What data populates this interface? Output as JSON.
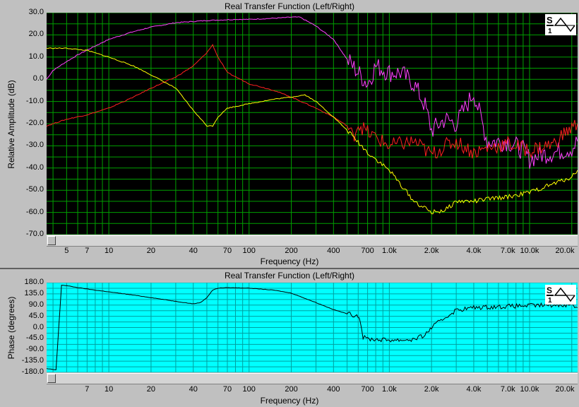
{
  "chart_data": [
    {
      "type": "line",
      "title": "Real Transfer Function (Left/Right)",
      "xlabel": "Frequency (Hz)",
      "ylabel": "Relative Amplitude (dB)",
      "xscale": "log",
      "xlim": [
        3.6,
        22000
      ],
      "ylim": [
        -70,
        30
      ],
      "yticks": [
        "30.0",
        "20.0",
        "10.0",
        "0.0",
        "-10.0",
        "-20.0",
        "-30.0",
        "-40.0",
        "-50.0",
        "-60.0",
        "-70.0"
      ],
      "xticks": [
        {
          "v": 5,
          "label": "5"
        },
        {
          "v": 7,
          "label": "7"
        },
        {
          "v": 10,
          "label": "10"
        },
        {
          "v": 20,
          "label": "20"
        },
        {
          "v": 40,
          "label": "40"
        },
        {
          "v": 70,
          "label": "70"
        },
        {
          "v": 100,
          "label": "100"
        },
        {
          "v": 200,
          "label": "200"
        },
        {
          "v": 400,
          "label": "400"
        },
        {
          "v": 700,
          "label": "700"
        },
        {
          "v": 1000,
          "label": "1.0k"
        },
        {
          "v": 2000,
          "label": "2.0k"
        },
        {
          "v": 4000,
          "label": "4.0k"
        },
        {
          "v": 7000,
          "label": "7.0k"
        },
        {
          "v": 10000,
          "label": "10.0k"
        },
        {
          "v": 20000,
          "label": "20.0k"
        }
      ],
      "background": "#000000",
      "grid": true,
      "grid_color": "#00a000",
      "series": [
        {
          "color": "#ff40ff",
          "x": [
            3.6,
            4,
            5,
            6,
            8,
            10,
            15,
            20,
            30,
            50,
            80,
            100,
            150,
            200,
            230,
            300,
            400,
            500,
            600,
            700,
            800,
            1000,
            1200,
            1500,
            1800,
            2000,
            2500,
            3000,
            4000,
            5000,
            6000,
            7000,
            9000,
            10000,
            12000,
            15000,
            20000,
            22000
          ],
          "y": [
            0,
            4,
            8,
            11,
            15,
            18,
            21.5,
            23.5,
            25.5,
            26.5,
            27,
            27,
            27.5,
            28,
            28,
            24,
            18,
            9,
            3,
            -2,
            6,
            3,
            3,
            -2,
            -12,
            -23,
            -18,
            -20,
            -6,
            -28,
            -28,
            -28,
            -32,
            -36,
            -34,
            -33,
            -31,
            -28
          ]
        },
        {
          "color": "#ff2020",
          "x": [
            3.6,
            5,
            7,
            10,
            15,
            20,
            30,
            40,
            50,
            55,
            60,
            70,
            100,
            150,
            200,
            300,
            400,
            500,
            550,
            600,
            700,
            1000,
            1500,
            2000,
            2500,
            3000,
            4000,
            5000,
            7000,
            10000,
            15000,
            18000,
            20000,
            22000
          ],
          "y": [
            -21,
            -18,
            -16,
            -13,
            -8,
            -4,
            1,
            6,
            12,
            15.5,
            10,
            3,
            -2,
            -5,
            -8,
            -13,
            -17,
            -21,
            -26,
            -20,
            -24,
            -30,
            -28,
            -34,
            -30,
            -28,
            -33,
            -31,
            -29,
            -32,
            -29,
            -24,
            -22,
            -20
          ]
        },
        {
          "color": "#ffff00",
          "x": [
            3.6,
            5,
            7,
            10,
            15,
            20,
            30,
            40,
            50,
            55,
            60,
            70,
            100,
            150,
            200,
            250,
            300,
            400,
            500,
            700,
            1000,
            1500,
            2000,
            2500,
            3000,
            4000,
            5000,
            7000,
            10000,
            15000,
            20000,
            22000
          ],
          "y": [
            14,
            14,
            13,
            10,
            6,
            2,
            -4,
            -14,
            -21,
            -21,
            -17,
            -13,
            -11,
            -9,
            -8,
            -7,
            -10,
            -17,
            -23,
            -33,
            -41,
            -55,
            -60,
            -59,
            -55,
            -55,
            -54,
            -53,
            -51,
            -47,
            -44,
            -41
          ]
        }
      ]
    },
    {
      "type": "line",
      "title": "Real Transfer Function (Left/Right)",
      "xlabel": "Frequency (Hz)",
      "ylabel": "Phase (degrees)",
      "xscale": "log",
      "xlim": [
        3.6,
        22000
      ],
      "ylim": [
        -180,
        180
      ],
      "yticks": [
        "180.0",
        "135.0",
        "90.0",
        "45.0",
        "0.0",
        "-45.0",
        "-90.0",
        "-135.0",
        "-180.0"
      ],
      "xticks": [
        {
          "v": 7,
          "label": "7"
        },
        {
          "v": 10,
          "label": "10"
        },
        {
          "v": 20,
          "label": "20"
        },
        {
          "v": 40,
          "label": "40"
        },
        {
          "v": 70,
          "label": "70"
        },
        {
          "v": 100,
          "label": "100"
        },
        {
          "v": 200,
          "label": "200"
        },
        {
          "v": 400,
          "label": "400"
        },
        {
          "v": 700,
          "label": "700"
        },
        {
          "v": 1000,
          "label": "1.0k"
        },
        {
          "v": 2000,
          "label": "2.0k"
        },
        {
          "v": 4000,
          "label": "4.0k"
        },
        {
          "v": 7000,
          "label": "7.0k"
        },
        {
          "v": 10000,
          "label": "10.0k"
        },
        {
          "v": 20000,
          "label": "20.0k"
        }
      ],
      "background": "#00ffff",
      "grid": true,
      "grid_color": "#00a0a0",
      "series": [
        {
          "color": "#000000",
          "x": [
            3.6,
            4.2,
            4.6,
            5,
            6,
            8,
            10,
            15,
            20,
            30,
            40,
            45,
            50,
            55,
            60,
            70,
            100,
            150,
            200,
            300,
            400,
            500,
            600,
            620,
            650,
            700,
            800,
            1000,
            1200,
            1500,
            1800,
            2000,
            2500,
            3000,
            4000,
            5000,
            7000,
            10000,
            15000,
            20000,
            22000
          ],
          "y": [
            -165,
            -170,
            170,
            168,
            160,
            150,
            143,
            130,
            120,
            105,
            95,
            100,
            120,
            150,
            158,
            160,
            158,
            150,
            138,
            100,
            72,
            55,
            48,
            30,
            -40,
            -45,
            -48,
            -50,
            -50,
            -48,
            -30,
            0,
            40,
            70,
            80,
            82,
            85,
            88,
            90,
            92,
            80
          ]
        }
      ]
    }
  ]
}
